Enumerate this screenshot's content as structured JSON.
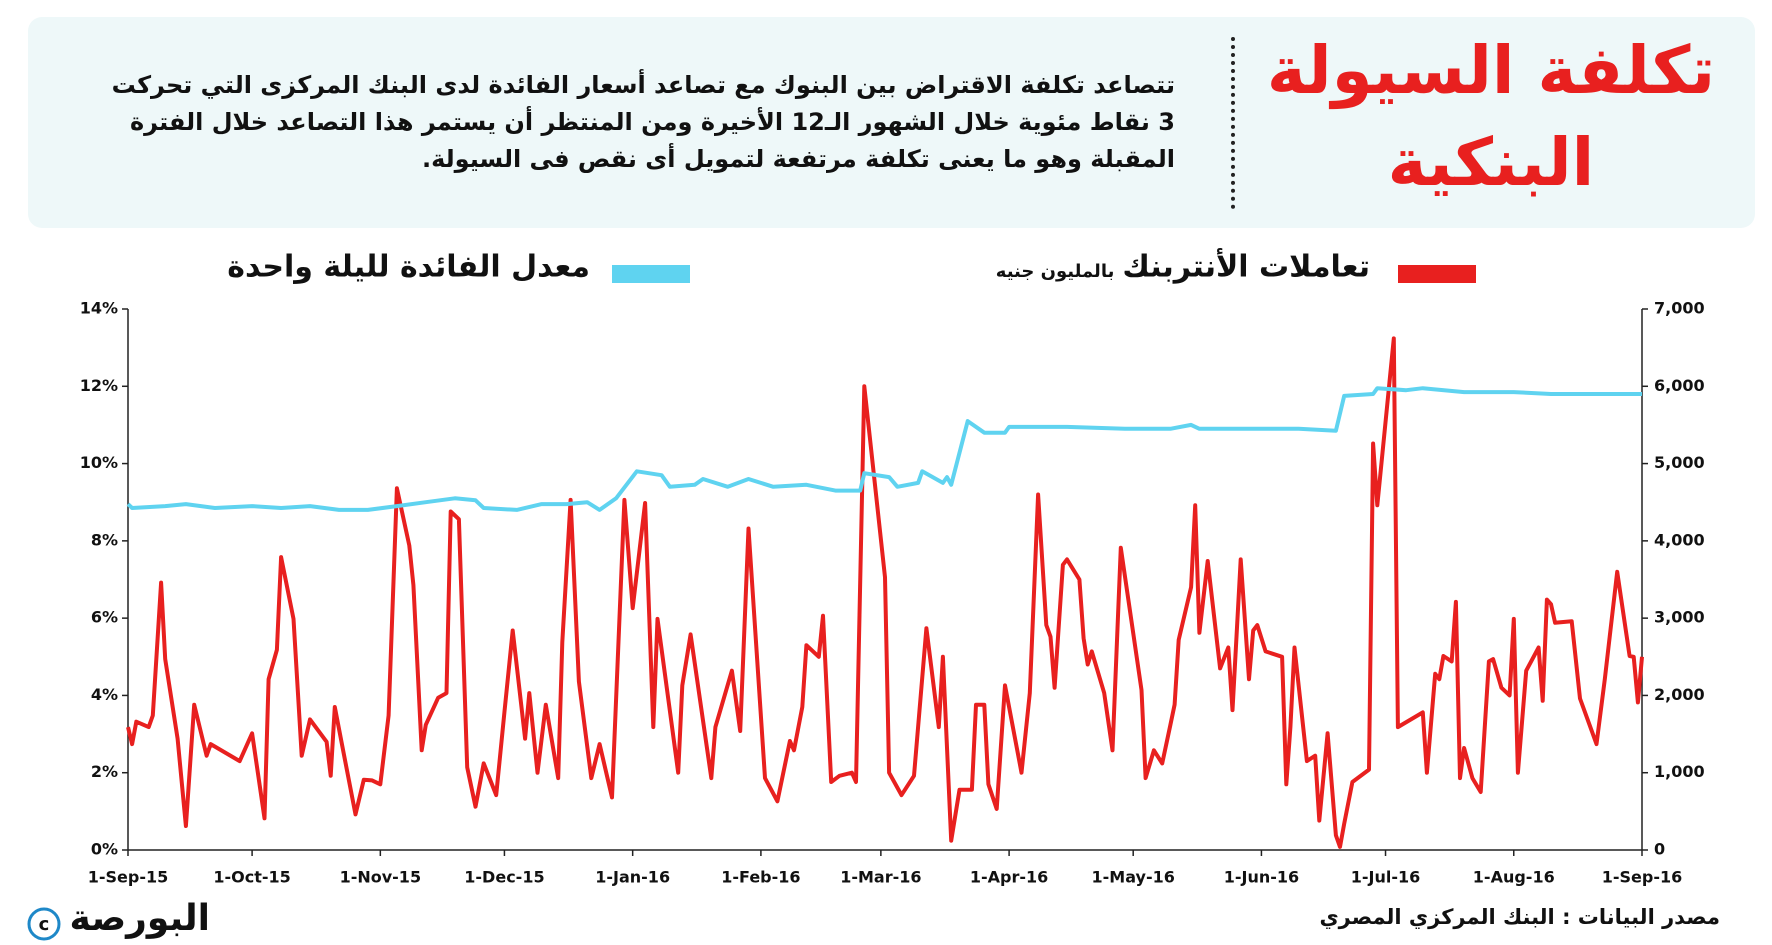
{
  "header": {
    "title": "تكلفة السيولة البنكية",
    "description": "تتصاعد تكلفة الاقتراض بين البنوك مع تصاعد أسعار الفائدة لدى البنك المركزى التي تحركت 3 نقاط مئوية خلال الشهور الـ12 الأخيرة ومن المنتظر أن يستمر هذا التصاعد خلال الفترة المقبلة وهو ما يعنى تكلفة مرتفعة لتمويل أى نقص فى السيولة."
  },
  "chart_data": {
    "type": "line",
    "y2label": "بالمليون جنيه",
    "source": "مصدر البيانات : البنك المركزي المصري",
    "logo": "البورصة",
    "xlim": [
      "2015-09-01",
      "2016-09-01"
    ],
    "xticks": [
      {
        "value": "2015-09-01",
        "label": "1-Sep-15"
      },
      {
        "value": "2015-10-01",
        "label": "1-Oct-15"
      },
      {
        "value": "2015-11-01",
        "label": "1-Nov-15"
      },
      {
        "value": "2015-12-01",
        "label": "1-Dec-15"
      },
      {
        "value": "2016-01-01",
        "label": "1-Jan-16"
      },
      {
        "value": "2016-02-01",
        "label": "1-Feb-16"
      },
      {
        "value": "2016-03-01",
        "label": "1-Mar-16"
      },
      {
        "value": "2016-04-01",
        "label": "1-Apr-16"
      },
      {
        "value": "2016-05-01",
        "label": "1-May-16"
      },
      {
        "value": "2016-06-01",
        "label": "1-Jun-16"
      },
      {
        "value": "2016-07-01",
        "label": "1-Jul-16"
      },
      {
        "value": "2016-08-01",
        "label": "1-Aug-16"
      },
      {
        "value": "2016-09-01",
        "label": "1-Sep-16"
      }
    ],
    "ylim": [
      0,
      14
    ],
    "yticks": [
      {
        "value": 0,
        "label": "0%"
      },
      {
        "value": 2,
        "label": "2%"
      },
      {
        "value": 4,
        "label": "4%"
      },
      {
        "value": 6,
        "label": "6%"
      },
      {
        "value": 8,
        "label": "8%"
      },
      {
        "value": 10,
        "label": "10%"
      },
      {
        "value": 12,
        "label": "12%"
      },
      {
        "value": 14,
        "label": "14%"
      }
    ],
    "y2lim": [
      0,
      7000
    ],
    "y2ticks": [
      0,
      {
        "value": 1000,
        "label": "1,000"
      },
      {
        "value": 2000,
        "label": "2,000"
      },
      {
        "value": 3000,
        "label": "3,000"
      },
      {
        "value": 4000,
        "label": "4,000"
      },
      {
        "value": 5000,
        "label": "5,000"
      },
      {
        "value": 6000,
        "label": "6,000"
      },
      {
        "value": 7000,
        "label": "7,000"
      }
    ],
    "grid": false,
    "series": [
      {
        "name": "تعاملات الأنتربنك",
        "color": "#e8201f",
        "axis": "y2",
        "x": [
          "2015-09-01",
          "2015-09-02",
          "2015-09-03",
          "2015-09-06",
          "2015-09-07",
          "2015-09-09",
          "2015-09-10",
          "2015-09-13",
          "2015-09-15",
          "2015-09-17",
          "2015-09-20",
          "2015-09-21",
          "2015-09-28",
          "2015-10-01",
          "2015-10-04",
          "2015-10-05",
          "2015-10-07",
          "2015-10-08",
          "2015-10-11",
          "2015-10-13",
          "2015-10-15",
          "2015-10-19",
          "2015-10-20",
          "2015-10-21",
          "2015-10-23",
          "2015-10-26",
          "2015-10-28",
          "2015-10-30",
          "2015-11-01",
          "2015-11-03",
          "2015-11-05",
          "2015-11-08",
          "2015-11-09",
          "2015-11-11",
          "2015-11-12",
          "2015-11-15",
          "2015-11-17",
          "2015-11-18",
          "2015-11-20",
          "2015-11-22",
          "2015-11-24",
          "2015-11-26",
          "2015-11-29",
          "2015-12-01",
          "2015-12-03",
          "2015-12-06",
          "2015-12-07",
          "2015-12-09",
          "2015-12-11",
          "2015-12-14",
          "2015-12-15",
          "2015-12-17",
          "2015-12-19",
          "2015-12-22",
          "2015-12-24",
          "2015-12-27",
          "2015-12-30",
          "2016-01-01",
          "2016-01-04",
          "2016-01-06",
          "2016-01-07",
          "2016-01-12",
          "2016-01-13",
          "2016-01-15",
          "2016-01-20",
          "2016-01-21",
          "2016-01-25",
          "2016-01-27",
          "2016-01-29",
          "2016-02-02",
          "2016-02-05",
          "2016-02-08",
          "2016-02-09",
          "2016-02-11",
          "2016-02-12",
          "2016-02-15",
          "2016-02-16",
          "2016-02-18",
          "2016-02-20",
          "2016-02-23",
          "2016-02-24",
          "2016-02-26",
          "2016-03-02",
          "2016-03-03",
          "2016-03-06",
          "2016-03-09",
          "2016-03-12",
          "2016-03-15",
          "2016-03-16",
          "2016-03-18",
          "2016-03-20",
          "2016-03-23",
          "2016-03-24",
          "2016-03-26",
          "2016-03-27",
          "2016-03-29",
          "2016-03-31",
          "2016-04-04",
          "2016-04-06",
          "2016-04-08",
          "2016-04-10",
          "2016-04-11",
          "2016-04-12",
          "2016-04-14",
          "2016-04-15",
          "2016-04-18",
          "2016-04-19",
          "2016-04-20",
          "2016-04-21",
          "2016-04-24",
          "2016-04-26",
          "2016-04-28",
          "2016-05-03",
          "2016-05-04",
          "2016-05-06",
          "2016-05-08",
          "2016-05-10",
          "2016-05-11",
          "2016-05-12",
          "2016-05-15",
          "2016-05-16",
          "2016-05-17",
          "2016-05-19",
          "2016-05-22",
          "2016-05-24",
          "2016-05-25",
          "2016-05-27",
          "2016-05-29",
          "2016-05-30",
          "2016-05-31",
          "2016-06-02",
          "2016-06-06",
          "2016-06-07",
          "2016-06-08",
          "2016-06-09",
          "2016-06-12",
          "2016-06-14",
          "2016-06-15",
          "2016-06-17",
          "2016-06-19",
          "2016-06-20",
          "2016-06-21",
          "2016-06-23",
          "2016-06-27",
          "2016-06-28",
          "2016-06-29",
          "2016-07-03",
          "2016-07-04",
          "2016-07-10",
          "2016-07-11",
          "2016-07-13",
          "2016-07-14",
          "2016-07-15",
          "2016-07-17",
          "2016-07-18",
          "2016-07-19",
          "2016-07-20",
          "2016-07-22",
          "2016-07-24",
          "2016-07-26",
          "2016-07-27",
          "2016-07-29",
          "2016-07-31",
          "2016-08-01",
          "2016-08-02",
          "2016-08-04",
          "2016-08-07",
          "2016-08-08",
          "2016-08-09",
          "2016-08-10",
          "2016-08-11",
          "2016-08-15",
          "2016-08-17",
          "2016-08-21",
          "2016-08-23",
          "2016-08-26",
          "2016-08-29",
          "2016-08-30",
          "2016-08-31",
          "2016-09-01"
        ],
        "values": [
          1590,
          1370,
          1660,
          1590,
          1740,
          3460,
          2470,
          1440,
          310,
          1880,
          1220,
          1370,
          1150,
          1510,
          410,
          2210,
          2590,
          3790,
          2990,
          1220,
          1690,
          1400,
          960,
          1850,
          1290,
          460,
          910,
          900,
          850,
          1740,
          4680,
          3940,
          3430,
          1290,
          1620,
          1970,
          2030,
          4380,
          4280,
          1070,
          560,
          1120,
          710,
          1780,
          2840,
          1440,
          2030,
          1000,
          1880,
          930,
          2690,
          4530,
          2180,
          930,
          1370,
          680,
          4530,
          3130,
          4490,
          1590,
          2990,
          1000,
          2130,
          2790,
          930,
          1590,
          2320,
          1540,
          4160,
          930,
          630,
          1410,
          1290,
          1850,
          2650,
          2500,
          3030,
          880,
          960,
          1000,
          880,
          6000,
          3530,
          1000,
          710,
          960,
          2870,
          1590,
          2500,
          120,
          780,
          780,
          1880,
          1880,
          850,
          530,
          2130,
          1000,
          2030,
          4600,
          2910,
          2760,
          2100,
          3690,
          3760,
          3500,
          2740,
          2400,
          2570,
          2030,
          1290,
          3910,
          2070,
          930,
          1290,
          1120,
          1620,
          1880,
          2720,
          3400,
          4460,
          2810,
          3740,
          2350,
          2620,
          1810,
          3760,
          2210,
          2840,
          2910,
          2570,
          2500,
          850,
          1590,
          2620,
          1150,
          1220,
          380,
          1510,
          190,
          40,
          340,
          880,
          1040,
          5260,
          4460,
          6620,
          1590,
          1780,
          1000,
          2280,
          2210,
          2510,
          2440,
          3210,
          930,
          1320,
          930,
          750,
          2440,
          2470,
          2100,
          2000,
          2990,
          1000,
          2320,
          2620,
          1930,
          3240,
          3180,
          2940,
          2960,
          1960,
          1370,
          2210,
          3600,
          2510,
          2500,
          1910,
          2500
        ]
      },
      {
        "name": "معدل الفائدة لليلة واحدة",
        "color": "#5fd3f0",
        "axis": "y",
        "x": [
          "2015-09-01",
          "2015-09-02",
          "2015-09-10",
          "2015-09-15",
          "2015-09-22",
          "2015-10-01",
          "2015-10-08",
          "2015-10-15",
          "2015-10-22",
          "2015-10-29",
          "2015-11-05",
          "2015-11-12",
          "2015-11-19",
          "2015-11-24",
          "2015-11-26",
          "2015-12-04",
          "2015-12-10",
          "2015-12-16",
          "2015-12-21",
          "2015-12-24",
          "2015-12-28",
          "2016-01-02",
          "2016-01-08",
          "2016-01-10",
          "2016-01-16",
          "2016-01-18",
          "2016-01-24",
          "2016-01-29",
          "2016-02-04",
          "2016-02-12",
          "2016-02-19",
          "2016-02-25",
          "2016-02-26",
          "2016-03-03",
          "2016-03-05",
          "2016-03-10",
          "2016-03-11",
          "2016-03-16",
          "2016-03-17",
          "2016-03-18",
          "2016-03-22",
          "2016-03-26",
          "2016-03-31",
          "2016-04-01",
          "2016-04-15",
          "2016-04-29",
          "2016-05-10",
          "2016-05-15",
          "2016-05-17",
          "2016-05-31",
          "2016-06-10",
          "2016-06-19",
          "2016-06-21",
          "2016-06-28",
          "2016-06-29",
          "2016-07-06",
          "2016-07-10",
          "2016-07-20",
          "2016-08-01",
          "2016-08-10",
          "2016-08-20",
          "2016-09-01"
        ],
        "values": [
          8.95,
          8.85,
          8.9,
          8.95,
          8.85,
          8.9,
          8.85,
          8.9,
          8.8,
          8.8,
          8.9,
          9.0,
          9.1,
          9.05,
          8.85,
          8.8,
          8.95,
          8.95,
          9.0,
          8.8,
          9.1,
          9.8,
          9.7,
          9.4,
          9.45,
          9.6,
          9.4,
          9.6,
          9.4,
          9.45,
          9.3,
          9.3,
          9.75,
          9.65,
          9.4,
          9.5,
          9.8,
          9.5,
          9.65,
          9.45,
          11.1,
          10.8,
          10.8,
          10.95,
          10.95,
          10.9,
          10.9,
          11.0,
          10.9,
          10.9,
          10.9,
          10.85,
          11.75,
          11.8,
          11.95,
          11.9,
          11.95,
          11.85,
          11.85,
          11.8,
          11.8,
          11.8
        ]
      }
    ]
  }
}
